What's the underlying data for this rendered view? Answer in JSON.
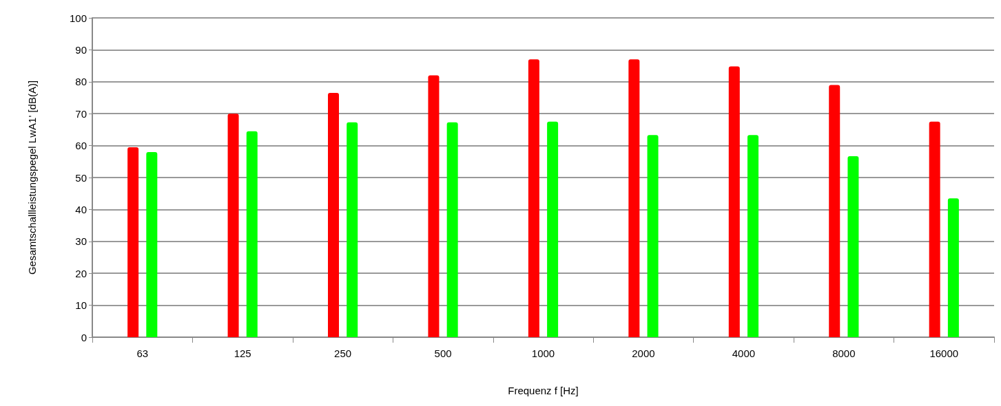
{
  "chart_data": {
    "type": "bar",
    "xlabel": "Frequenz f [Hz]",
    "ylabel": "Gesamtschallleistungspegel LwA1' [dB(A)]",
    "categories": [
      "63",
      "125",
      "250",
      "500",
      "1000",
      "2000",
      "4000",
      "8000",
      "16000"
    ],
    "series": [
      {
        "color": "#ff0000",
        "values": [
          59.5,
          70,
          76.5,
          82,
          87,
          87,
          84.8,
          79,
          67.5
        ]
      },
      {
        "color": "#00ff00",
        "values": [
          58,
          64.5,
          67.3,
          67.3,
          67.5,
          63.3,
          63.3,
          56.7,
          43.5
        ]
      }
    ],
    "ylim": [
      0,
      100
    ],
    "yticks": [
      0,
      10,
      20,
      30,
      40,
      50,
      60,
      70,
      80,
      90,
      100
    ],
    "grid": "y"
  }
}
